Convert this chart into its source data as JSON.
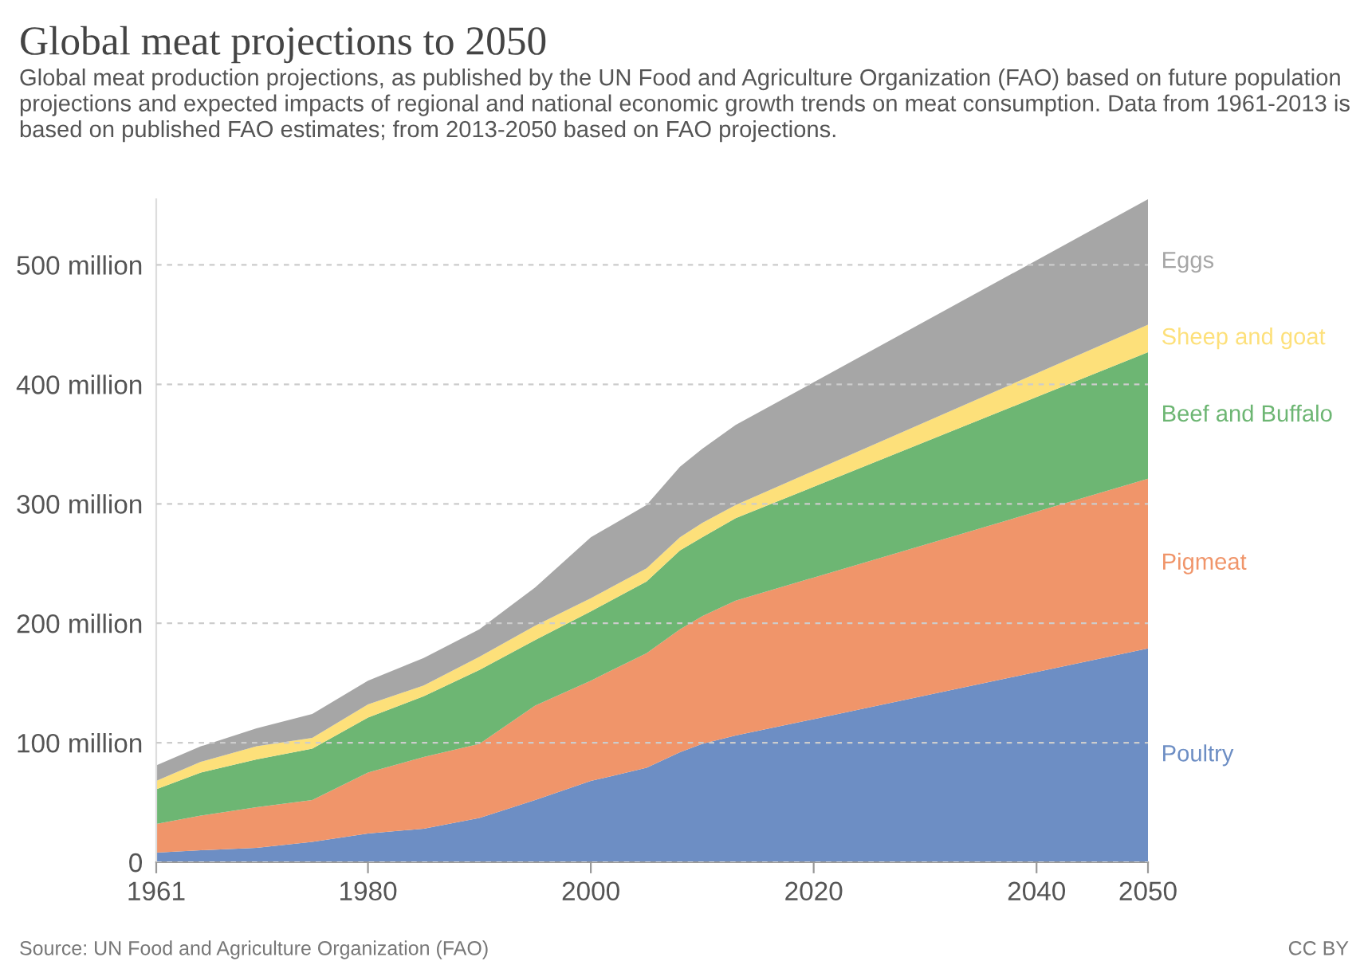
{
  "chart_data": {
    "type": "area",
    "stacked": true,
    "title": "Global meat projections to 2050",
    "subtitle": "Global meat production projections, as published by the UN Food and Agriculture Organization (FAO) based on future population projections and expected impacts of regional and national economic growth trends on meat consumption. Data from 1961-2013 is based on published FAO estimates; from 2013-2050 based on FAO projections.",
    "x": [
      1961,
      1965,
      1970,
      1975,
      1980,
      1985,
      1990,
      1995,
      2000,
      2005,
      2008,
      2010,
      2013,
      2050
    ],
    "series": [
      {
        "name": "Poultry",
        "color": "#6d8ec4",
        "values": [
          8,
          10,
          12,
          17,
          24,
          28,
          37,
          52,
          68,
          79,
          92,
          99,
          106,
          179
        ]
      },
      {
        "name": "Pigmeat",
        "color": "#f0956a",
        "values": [
          24,
          29,
          34,
          35,
          51,
          60,
          62,
          79,
          84,
          96,
          103,
          107,
          113,
          142
        ]
      },
      {
        "name": "Beef and Buffalo",
        "color": "#6db673",
        "values": [
          29,
          36,
          40,
          43,
          46,
          51,
          62,
          55,
          58,
          60,
          66,
          66,
          69,
          106
        ]
      },
      {
        "name": "Sheep and goat",
        "color": "#fde07a",
        "values": [
          7,
          9,
          11,
          9,
          11,
          9,
          11,
          12,
          11,
          11,
          11,
          12,
          11,
          23
        ]
      },
      {
        "name": "Eggs",
        "color": "#a6a6a6",
        "values": [
          13,
          13,
          15,
          20,
          20,
          23,
          23,
          32,
          51,
          53,
          59,
          62,
          67,
          105
        ]
      }
    ],
    "xlim": [
      1961,
      2050
    ],
    "xticks": [
      1961,
      1980,
      2000,
      2020,
      2040,
      2050
    ],
    "ylim": [
      0,
      555
    ],
    "yticks": [
      0,
      {
        "value": 100,
        "label": "100 million"
      },
      {
        "value": 200,
        "label": "200 million"
      },
      {
        "value": 300,
        "label": "300 million"
      },
      {
        "value": 400,
        "label": "400 million"
      },
      {
        "value": 500,
        "label": "500 million"
      }
    ],
    "grid": "y",
    "legend": "right",
    "annotations": [
      "Source: UN Food and Agriculture Organization (FAO)",
      "CC BY"
    ]
  }
}
